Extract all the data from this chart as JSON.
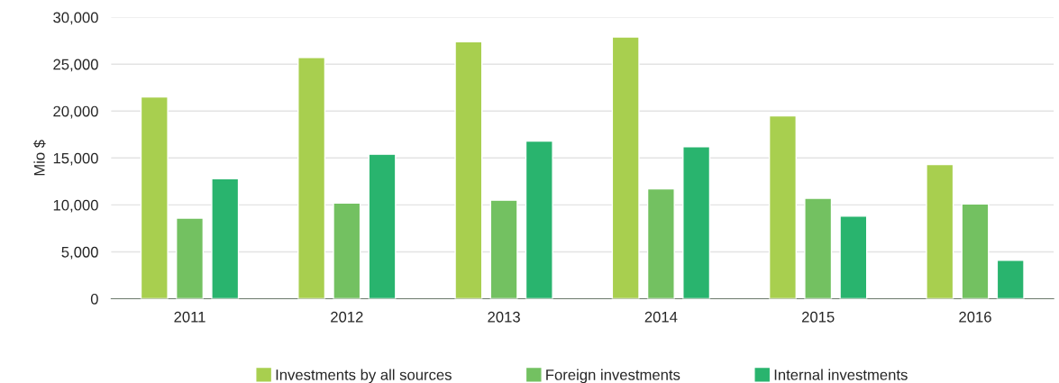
{
  "chart_data": {
    "type": "bar",
    "ylabel": "Mio $",
    "categories": [
      "2011",
      "2012",
      "2013",
      "2014",
      "2015",
      "2016"
    ],
    "series": [
      {
        "name": "Investments by all sources",
        "color": "#a8cf4f",
        "values": [
          21500,
          25700,
          27400,
          27900,
          19500,
          14300
        ]
      },
      {
        "name": "Foreign investments",
        "color": "#73c161",
        "values": [
          8600,
          10200,
          10500,
          11700,
          10700,
          10100
        ]
      },
      {
        "name": "Internal investments",
        "color": "#29b46e",
        "values": [
          12800,
          15400,
          16800,
          16200,
          8800,
          4100
        ]
      }
    ],
    "ylim": [
      0,
      30000
    ],
    "yticks": [
      {
        "value": 0,
        "label": "0"
      },
      {
        "value": 5000,
        "label": "5,000"
      },
      {
        "value": 10000,
        "label": "10,000"
      },
      {
        "value": 15000,
        "label": "15,000"
      },
      {
        "value": 20000,
        "label": "20,000"
      },
      {
        "value": 25000,
        "label": "25,000"
      },
      {
        "value": 30000,
        "label": "30,000"
      }
    ],
    "grid": "y",
    "legend": "bottom"
  }
}
